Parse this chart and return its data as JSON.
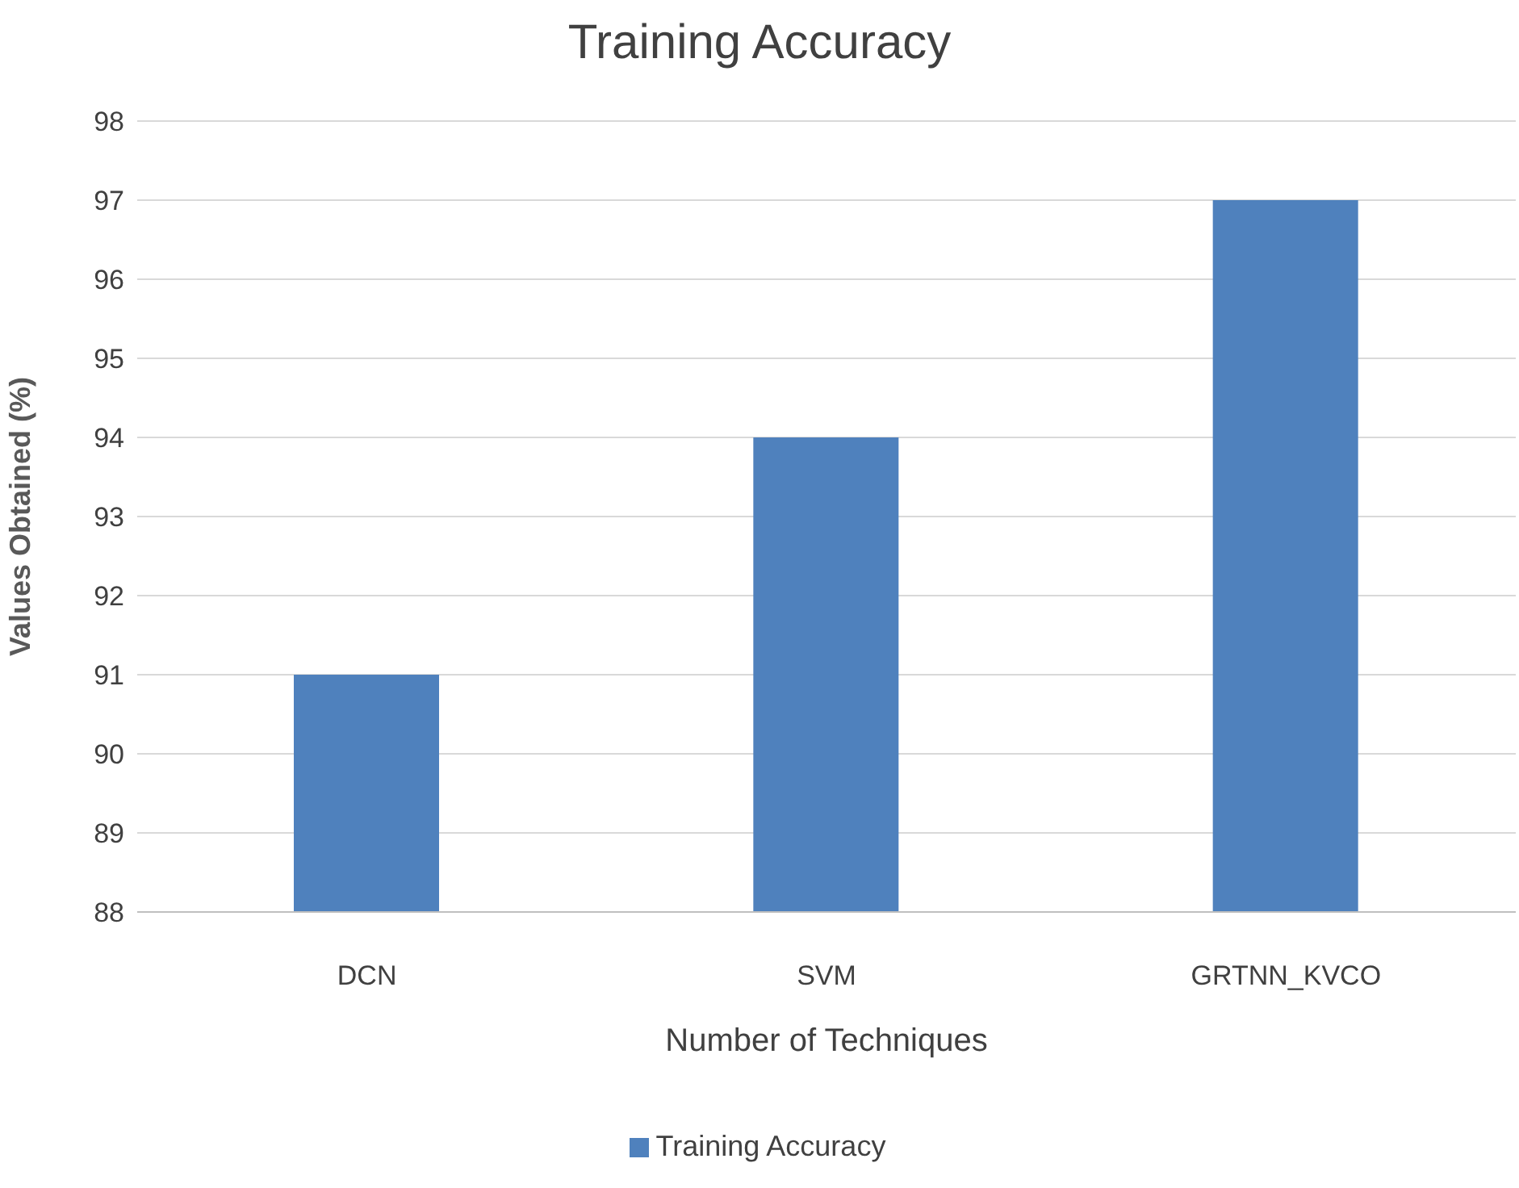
{
  "chart_data": {
    "type": "bar",
    "title": "Training Accuracy",
    "xlabel": "Number of Techniques",
    "ylabel": "Values Obtained (%)",
    "categories": [
      "DCN",
      "SVM",
      "GRTNN_KVCO"
    ],
    "series": [
      {
        "name": "Training Accuracy",
        "color": "#4f81bd",
        "values": [
          91,
          94,
          97
        ]
      }
    ],
    "ylim": [
      88,
      98
    ],
    "yticks": [
      88,
      89,
      90,
      91,
      92,
      93,
      94,
      95,
      96,
      97,
      98
    ],
    "grid": "y",
    "legend": "bottom"
  }
}
